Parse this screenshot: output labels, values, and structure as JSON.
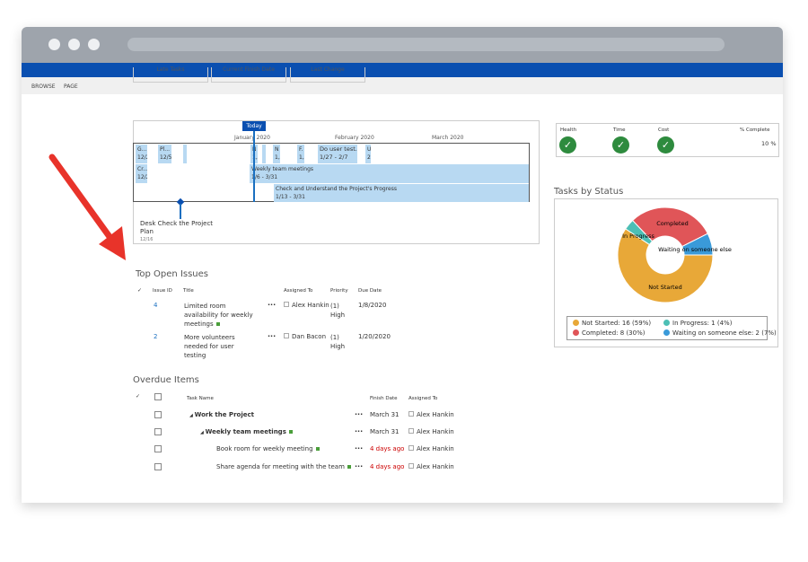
{
  "nav": {
    "items": [
      "BROWSE",
      "PAGE"
    ]
  },
  "tiles": [
    "Late Tasks",
    "Current Finish Date",
    "Last Change"
  ],
  "timeline": {
    "today": "Today",
    "months": [
      "January 2020",
      "February 2020",
      "March 2020"
    ],
    "bars": [
      {
        "name": "G...",
        "dates": "12/2"
      },
      {
        "name": "Pl...",
        "dates": "12/5"
      },
      {
        "name": "N",
        "dates": "1,"
      },
      {
        "name": "N",
        "dates": "1,"
      },
      {
        "name": "F.",
        "dates": "1,"
      },
      {
        "name": "Do user test...",
        "dates": "1/27 - 2/7"
      },
      {
        "name": "U",
        "dates": "2,"
      },
      {
        "name": "Cr...",
        "dates": "12/2"
      },
      {
        "name": "Weekly team meetings",
        "dates": "1/6 - 3/31"
      },
      {
        "name": "Check and Understand the Project's Progress",
        "dates": "1/13 - 3/31"
      }
    ],
    "milestone": {
      "name": "Desk Check the Project Plan",
      "date": "12/16"
    }
  },
  "status": {
    "health": "Health",
    "time": "Time",
    "cost": "Cost",
    "pct_label": "% Complete",
    "pct": "10 %"
  },
  "issues": {
    "title": "Top Open Issues",
    "headers": [
      "Issue ID",
      "Title",
      "Assigned To",
      "Priority",
      "Due Date"
    ],
    "rows": [
      {
        "id": "4",
        "title": "Limited room availability for weekly meetings",
        "assigned": "Alex Hankin",
        "priority": "(1) High",
        "due": "1/8/2020"
      },
      {
        "id": "2",
        "title": "More volunteers needed for user testing",
        "assigned": "Dan Bacon",
        "priority": "(1) High",
        "due": "1/20/2020"
      }
    ]
  },
  "overdue": {
    "title": "Overdue Items",
    "headers": [
      "Task Name",
      "Finish Date",
      "Assigned To"
    ],
    "rows": [
      {
        "name": "Work the Project",
        "finish": "March 31",
        "assigned": "Alex Hankin"
      },
      {
        "name": "Weekly team meetings",
        "finish": "March 31",
        "assigned": "Alex Hankin"
      },
      {
        "name": "Book room for weekly meeting",
        "finish": "4 days ago",
        "assigned": "Alex Hankin"
      },
      {
        "name": "Share agenda for meeting with the team",
        "finish": "4 days ago",
        "assigned": "Alex Hankin"
      }
    ]
  },
  "chart_data": {
    "type": "pie",
    "title": "Tasks by Status",
    "categories": [
      "Not Started",
      "In Progress",
      "Completed",
      "Waiting on someone else"
    ],
    "values": [
      16,
      1,
      8,
      2
    ],
    "legend": [
      "Not Started: 16 (59%)",
      "In Progress: 1 (4%)",
      "Completed: 8 (30%)",
      "Waiting on someone else: 2 (7%)"
    ],
    "colors": [
      "#e8a838",
      "#4dbfb5",
      "#e05558",
      "#3a9ad9"
    ],
    "legend_position": "bottom"
  }
}
